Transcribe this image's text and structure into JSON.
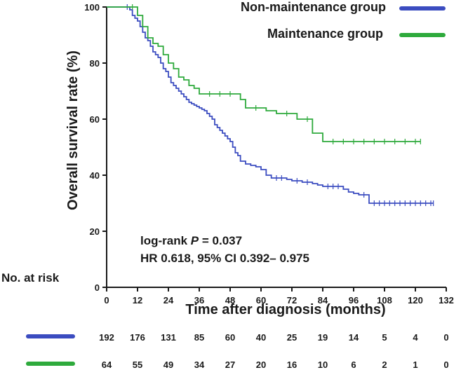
{
  "chart_data": {
    "type": "line",
    "subtype": "kaplan-meier",
    "title": "",
    "xlabel": "Time after diagnosis (months)",
    "ylabel": "Overall survival rate (%)",
    "xlim": [
      0,
      132
    ],
    "ylim": [
      0,
      100
    ],
    "xticks": [
      0,
      12,
      24,
      36,
      48,
      60,
      72,
      84,
      96,
      108,
      120,
      132
    ],
    "yticks": [
      0,
      20,
      40,
      60,
      80,
      100
    ],
    "grid": false,
    "legend_position": "top-right",
    "series": [
      {
        "name": "Non-maintenance group",
        "color": "#3b4cc0",
        "x": [
          0,
          8,
          9,
          10,
          11,
          12,
          13,
          14,
          15,
          16,
          17,
          18,
          19,
          20,
          21,
          22,
          23,
          24,
          25,
          26,
          27,
          28,
          29,
          30,
          31,
          32,
          33,
          34,
          35,
          36,
          37,
          38,
          39,
          40,
          41,
          42,
          43,
          44,
          45,
          46,
          47,
          48,
          49,
          50,
          51,
          52,
          54,
          56,
          58,
          60,
          62,
          64,
          66,
          68,
          70,
          72,
          74,
          76,
          78,
          80,
          82,
          84,
          86,
          88,
          90,
          92,
          94,
          96,
          98,
          100,
          102,
          104,
          106,
          108,
          110,
          112,
          114,
          116,
          118,
          120,
          122,
          124,
          126,
          127
        ],
        "y": [
          100,
          100,
          99,
          97,
          96,
          95,
          93,
          91,
          89,
          88,
          86,
          84,
          83,
          82,
          80,
          78,
          77,
          75,
          73,
          72,
          71,
          70,
          69,
          68,
          67,
          66,
          65.5,
          65,
          64.5,
          64,
          63.5,
          63,
          62,
          61,
          60,
          58,
          57,
          56,
          55,
          54,
          53,
          52,
          50,
          48,
          47,
          45,
          44,
          43.5,
          43,
          42,
          40,
          39,
          39,
          39,
          38.5,
          38,
          38,
          37.5,
          37.5,
          37,
          36.5,
          36,
          36,
          36,
          36,
          35,
          34,
          33.5,
          33,
          33,
          30,
          30,
          30,
          30,
          30,
          30,
          30,
          30,
          30,
          30,
          30,
          30,
          30,
          30
        ]
      },
      {
        "name": "Maintenance group",
        "color": "#2eaa3c",
        "x": [
          0,
          10,
          12,
          14,
          16,
          18,
          20,
          22,
          24,
          26,
          28,
          30,
          32,
          34,
          36,
          40,
          44,
          48,
          52,
          54,
          58,
          62,
          66,
          70,
          74,
          78,
          80,
          84,
          88,
          92,
          96,
          100,
          104,
          108,
          112,
          116,
          120,
          122
        ],
        "y": [
          100,
          100,
          97,
          93,
          89,
          87,
          86,
          83,
          80,
          78,
          75,
          74,
          72,
          71,
          69,
          69,
          69,
          69,
          67,
          64,
          64,
          63,
          62,
          62,
          60,
          60,
          55,
          52,
          52,
          52,
          52,
          52,
          52,
          52,
          52,
          52,
          52,
          52
        ]
      }
    ],
    "annotations": [
      "log-rank P = 0.037",
      "HR 0.618, 95% CI 0.392– 0.975"
    ],
    "risk_table": {
      "title": "No. at risk",
      "rows": [
        {
          "group": "Non-maintenance group",
          "color": "#3b4cc0",
          "values": [
            192,
            176,
            131,
            85,
            60,
            40,
            25,
            19,
            14,
            5,
            4,
            0
          ]
        },
        {
          "group": "Maintenance group",
          "color": "#2eaa3c",
          "values": [
            64,
            55,
            49,
            34,
            27,
            20,
            16,
            10,
            6,
            2,
            1,
            0
          ]
        }
      ]
    }
  },
  "text": {
    "legend_nonmaint": "Non-maintenance group",
    "legend_maint": "Maintenance group",
    "annot_logrank_prefix": "log-rank ",
    "annot_logrank_p": "P",
    "annot_logrank_suffix": " = 0.037",
    "annot_hr": "HR 0.618, 95% CI 0.392– 0.975",
    "risk_title": "No. at risk",
    "xlabel": "Time after diagnosis (months)",
    "ylabel": "Overall survival rate (%)"
  }
}
